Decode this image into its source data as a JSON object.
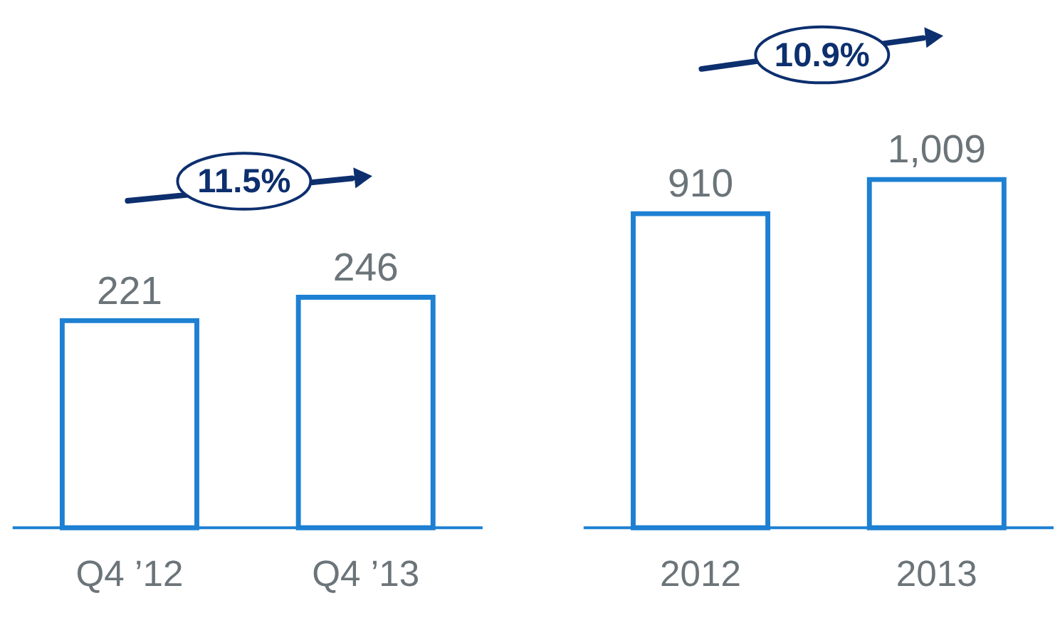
{
  "chart_data": [
    {
      "type": "bar",
      "categories": [
        "Q4 ’12",
        "Q4 ’13"
      ],
      "values": [
        221,
        246
      ],
      "color": "#1e80d2",
      "value_labels": [
        "221",
        "246"
      ],
      "annotations": [
        "11.5%"
      ]
    },
    {
      "type": "bar",
      "categories": [
        "2012",
        "2013"
      ],
      "values": [
        910,
        1009
      ],
      "color": "#1e80d2",
      "value_labels": [
        "910",
        "1,009"
      ],
      "annotations": [
        "10.9%"
      ]
    }
  ]
}
